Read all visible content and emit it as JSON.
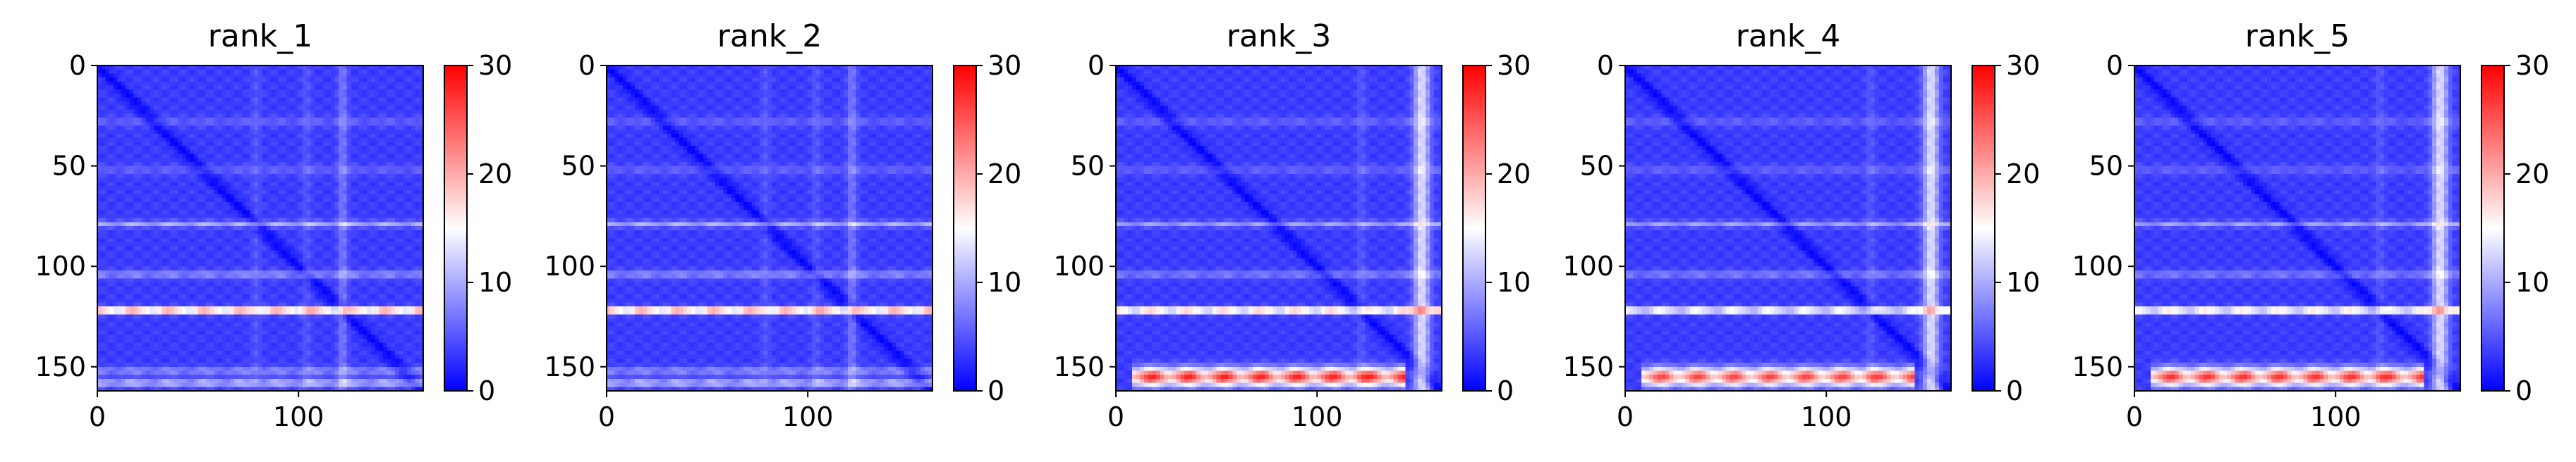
{
  "chart_data": [
    {
      "type": "heatmap",
      "title": "rank_1",
      "xticks": [
        0,
        100
      ],
      "yticks": [
        0,
        50,
        100,
        150
      ],
      "xlim": [
        0,
        162
      ],
      "ylim": [
        162,
        0
      ],
      "colorbar": {
        "ticks": [
          0,
          10,
          20,
          30
        ],
        "range": [
          0,
          30
        ],
        "colormap": "bwr"
      },
      "features": {
        "base": 3.5,
        "bands": [
          {
            "y": 122,
            "value": 27,
            "width": 1.6,
            "x_range": [
              0,
              162
            ]
          },
          {
            "y": 104,
            "value": 9,
            "width": 2.0,
            "x_range": [
              0,
              162
            ]
          },
          {
            "y": 79,
            "value": 11,
            "width": 1.6,
            "x_range": [
              0,
              162
            ]
          },
          {
            "y": 52,
            "value": 6,
            "width": 2.5,
            "x_range": [
              0,
              162
            ]
          },
          {
            "y": 28,
            "value": 6,
            "width": 2.5,
            "x_range": [
              0,
              162
            ]
          },
          {
            "y": 152,
            "value": 9,
            "width": 2.0,
            "x_range": [
              0,
              162
            ]
          },
          {
            "y": 158,
            "value": 12,
            "width": 2.0,
            "x_range": [
              0,
              162
            ]
          }
        ],
        "columns": [
          {
            "x": 122,
            "value": 7,
            "width": 2.5
          },
          {
            "x": 104,
            "value": 5,
            "width": 2.5
          },
          {
            "x": 79,
            "value": 5,
            "width": 2.5
          }
        ]
      }
    },
    {
      "type": "heatmap",
      "title": "rank_2",
      "xticks": [
        0,
        100
      ],
      "yticks": [
        0,
        50,
        100,
        150
      ],
      "xlim": [
        0,
        162
      ],
      "ylim": [
        162,
        0
      ],
      "colorbar": {
        "ticks": [
          0,
          10,
          20,
          30
        ],
        "range": [
          0,
          30
        ],
        "colormap": "bwr"
      },
      "features": {
        "base": 3.5,
        "bands": [
          {
            "y": 122,
            "value": 27,
            "width": 1.6,
            "x_range": [
              0,
              162
            ]
          },
          {
            "y": 104,
            "value": 9,
            "width": 2.0,
            "x_range": [
              0,
              162
            ]
          },
          {
            "y": 79,
            "value": 11,
            "width": 1.6,
            "x_range": [
              0,
              162
            ]
          },
          {
            "y": 52,
            "value": 6,
            "width": 2.5,
            "x_range": [
              0,
              162
            ]
          },
          {
            "y": 28,
            "value": 6,
            "width": 2.5,
            "x_range": [
              0,
              162
            ]
          },
          {
            "y": 152,
            "value": 9,
            "width": 2.0,
            "x_range": [
              0,
              162
            ]
          },
          {
            "y": 158,
            "value": 12,
            "width": 2.0,
            "x_range": [
              0,
              162
            ]
          }
        ],
        "columns": [
          {
            "x": 122,
            "value": 7,
            "width": 2.5
          },
          {
            "x": 104,
            "value": 5,
            "width": 2.5
          },
          {
            "x": 79,
            "value": 5,
            "width": 2.5
          }
        ]
      }
    },
    {
      "type": "heatmap",
      "title": "rank_3",
      "xticks": [
        0,
        100
      ],
      "yticks": [
        0,
        50,
        100,
        150
      ],
      "xlim": [
        0,
        162
      ],
      "ylim": [
        162,
        0
      ],
      "colorbar": {
        "ticks": [
          0,
          10,
          20,
          30
        ],
        "range": [
          0,
          30
        ],
        "colormap": "bwr"
      },
      "features": {
        "base": 3.5,
        "bands": [
          {
            "y": 122,
            "value": 24,
            "width": 1.6,
            "x_range": [
              0,
              162
            ]
          },
          {
            "y": 104,
            "value": 8,
            "width": 2.0,
            "x_range": [
              0,
              162
            ]
          },
          {
            "y": 79,
            "value": 10,
            "width": 1.6,
            "x_range": [
              0,
              162
            ]
          },
          {
            "y": 52,
            "value": 6,
            "width": 2.5,
            "x_range": [
              0,
              162
            ]
          },
          {
            "y": 28,
            "value": 6,
            "width": 2.5,
            "x_range": [
              0,
              162
            ]
          },
          {
            "y": 155,
            "value": 28,
            "width": 4.5,
            "x_range": [
              8,
              143
            ]
          }
        ],
        "columns": [
          {
            "x": 152,
            "value": 13,
            "width": 4.0
          },
          {
            "x": 122,
            "value": 5,
            "width": 2.5
          }
        ]
      }
    },
    {
      "type": "heatmap",
      "title": "rank_4",
      "xticks": [
        0,
        100
      ],
      "yticks": [
        0,
        50,
        100,
        150
      ],
      "xlim": [
        0,
        162
      ],
      "ylim": [
        162,
        0
      ],
      "colorbar": {
        "ticks": [
          0,
          10,
          20,
          30
        ],
        "range": [
          0,
          30
        ],
        "colormap": "bwr"
      },
      "features": {
        "base": 3.5,
        "bands": [
          {
            "y": 122,
            "value": 20,
            "width": 1.6,
            "x_range": [
              0,
              162
            ]
          },
          {
            "y": 104,
            "value": 8,
            "width": 2.0,
            "x_range": [
              0,
              162
            ]
          },
          {
            "y": 79,
            "value": 10,
            "width": 1.6,
            "x_range": [
              0,
              162
            ]
          },
          {
            "y": 52,
            "value": 6,
            "width": 2.5,
            "x_range": [
              0,
              162
            ]
          },
          {
            "y": 28,
            "value": 6,
            "width": 2.5,
            "x_range": [
              0,
              162
            ]
          },
          {
            "y": 155,
            "value": 26,
            "width": 4.5,
            "x_range": [
              8,
              143
            ]
          }
        ],
        "columns": [
          {
            "x": 152,
            "value": 13,
            "width": 4.0
          },
          {
            "x": 122,
            "value": 5,
            "width": 2.5
          }
        ]
      }
    },
    {
      "type": "heatmap",
      "title": "rank_5",
      "xticks": [
        0,
        100
      ],
      "yticks": [
        0,
        50,
        100,
        150
      ],
      "xlim": [
        0,
        162
      ],
      "ylim": [
        162,
        0
      ],
      "colorbar": {
        "ticks": [
          0,
          10,
          20,
          30
        ],
        "range": [
          0,
          30
        ],
        "colormap": "bwr"
      },
      "features": {
        "base": 3.5,
        "bands": [
          {
            "y": 122,
            "value": 22,
            "width": 1.6,
            "x_range": [
              0,
              162
            ]
          },
          {
            "y": 104,
            "value": 8,
            "width": 2.0,
            "x_range": [
              0,
              162
            ]
          },
          {
            "y": 79,
            "value": 10,
            "width": 1.6,
            "x_range": [
              0,
              162
            ]
          },
          {
            "y": 52,
            "value": 6,
            "width": 2.5,
            "x_range": [
              0,
              162
            ]
          },
          {
            "y": 28,
            "value": 6,
            "width": 2.5,
            "x_range": [
              0,
              162
            ]
          },
          {
            "y": 155,
            "value": 27,
            "width": 4.5,
            "x_range": [
              8,
              143
            ]
          }
        ],
        "columns": [
          {
            "x": 152,
            "value": 13,
            "width": 4.0
          },
          {
            "x": 122,
            "value": 5,
            "width": 2.5
          }
        ]
      }
    }
  ]
}
